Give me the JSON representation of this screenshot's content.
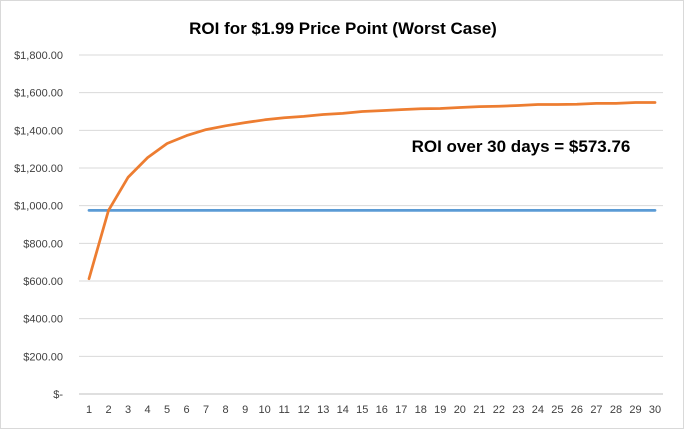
{
  "chart_data": {
    "type": "line",
    "title": "ROI for $1.99 Price Point (Worst Case)",
    "annotation": "ROI over 30 days = $573.76",
    "xlabel": "",
    "ylabel": "",
    "x": [
      1,
      2,
      3,
      4,
      5,
      6,
      7,
      8,
      9,
      10,
      11,
      12,
      13,
      14,
      15,
      16,
      17,
      18,
      19,
      20,
      21,
      22,
      23,
      24,
      25,
      26,
      27,
      28,
      29,
      30
    ],
    "ylim": [
      0,
      1800
    ],
    "yticks": [
      0,
      200,
      400,
      600,
      800,
      1000,
      1200,
      1400,
      1600,
      1800
    ],
    "ytick_labels": [
      "$-",
      "$200.00",
      "$400.00",
      "$600.00",
      "$800.00",
      "$1,000.00",
      "$1,200.00",
      "$1,400.00",
      "$1,600.00",
      "$1,800.00"
    ],
    "grid": true,
    "legend": "none",
    "series": [
      {
        "color": "#ed7d31",
        "values": [
          612,
          975,
          1150,
          1255,
          1330,
          1372,
          1404,
          1424,
          1441,
          1456,
          1467,
          1474,
          1484,
          1490,
          1500,
          1505,
          1510,
          1515,
          1516,
          1521,
          1526,
          1528,
          1532,
          1537,
          1537,
          1538,
          1543,
          1543,
          1548,
          1548
        ]
      },
      {
        "color": "#5b9bd5",
        "values": [
          975,
          975,
          975,
          975,
          975,
          975,
          975,
          975,
          975,
          975,
          975,
          975,
          975,
          975,
          975,
          975,
          975,
          975,
          975,
          975,
          975,
          975,
          975,
          975,
          975,
          975,
          975,
          975,
          975,
          975
        ]
      }
    ]
  }
}
